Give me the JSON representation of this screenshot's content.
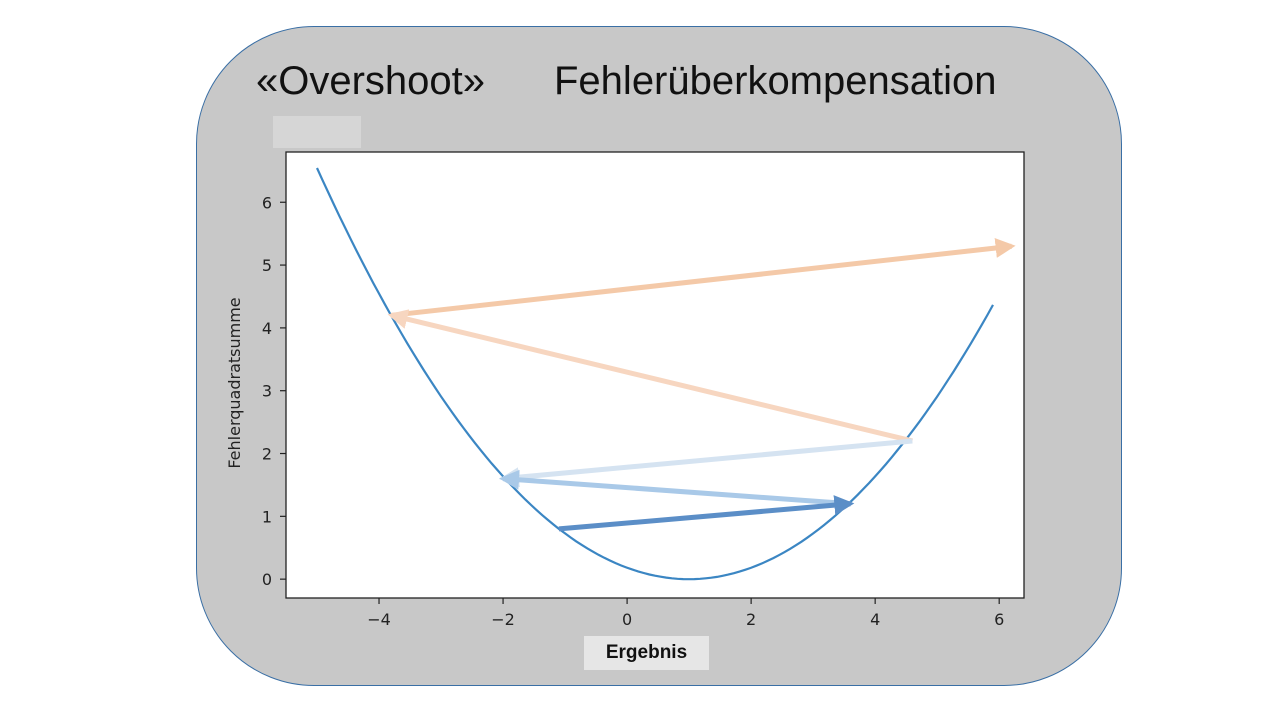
{
  "slide": {
    "title_left": "«Overshoot»",
    "title_right": "Fehlerüberkompensation"
  },
  "chart_data": {
    "type": "line",
    "xlabel": "Ergebnis",
    "ylabel": "Fehlerquadratsumme",
    "xlim": [
      -5.5,
      6.4
    ],
    "ylim": [
      -0.3,
      6.8
    ],
    "xticks": [
      -4,
      -2,
      0,
      2,
      4,
      6
    ],
    "xtick_labels": [
      "−4",
      "−2",
      "0",
      "2",
      "4",
      "6"
    ],
    "yticks": [
      0,
      1,
      2,
      3,
      4,
      5,
      6
    ],
    "ytick_labels": [
      "0",
      "1",
      "2",
      "3",
      "4",
      "5",
      "6"
    ],
    "grid": false,
    "curve": {
      "function": "y = (x - 1)^2 / 5.5",
      "x_range": [
        -5,
        5.9
      ],
      "color": "#3b86c3"
    },
    "arrows": [
      {
        "from": [
          -3.8,
          4.2
        ],
        "to": [
          6.2,
          5.3
        ],
        "color": "#f4c9a8"
      },
      {
        "from": [
          4.6,
          2.2
        ],
        "to": [
          -3.8,
          4.2
        ],
        "color": "#f7d6c0"
      },
      {
        "from": [
          4.6,
          2.2
        ],
        "to": [
          -2.0,
          1.6
        ],
        "color": "#d5e3f1"
      },
      {
        "from": [
          3.6,
          1.2
        ],
        "to": [
          -2.0,
          1.6
        ],
        "color": "#a9c9e8"
      },
      {
        "from": [
          -1.1,
          0.8
        ],
        "to": [
          3.6,
          1.2
        ],
        "color": "#5b8ec7"
      }
    ]
  }
}
